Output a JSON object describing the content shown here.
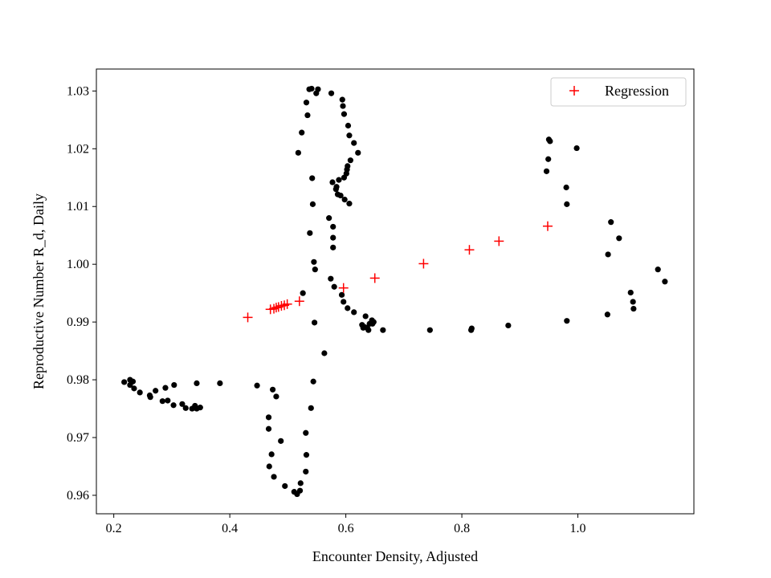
{
  "chart_data": {
    "type": "scatter",
    "title": "",
    "xlabel": "Encounter Density, Adjusted",
    "ylabel": "Reproductive Number R_d, Daily",
    "xlim": [
      0.17,
      1.2
    ],
    "ylim": [
      0.9568,
      1.0338
    ],
    "xticks": [
      0.2,
      0.4,
      0.6,
      0.8,
      1.0
    ],
    "xtick_labels": [
      "0.2",
      "0.4",
      "0.6",
      "0.8",
      "1.0"
    ],
    "yticks": [
      0.96,
      0.97,
      0.98,
      0.99,
      1.0,
      1.01,
      1.02,
      1.03
    ],
    "ytick_labels": [
      "0.96",
      "0.97",
      "0.98",
      "0.99",
      "1.00",
      "1.01",
      "1.02",
      "1.03"
    ],
    "grid": false,
    "legend_position": "top-right",
    "series": [
      {
        "marker": "dot",
        "color": "#000000",
        "points": [
          [
            0.218,
            0.9796
          ],
          [
            0.228,
            0.98
          ],
          [
            0.233,
            0.9797
          ],
          [
            0.228,
            0.9791
          ],
          [
            0.235,
            0.9785
          ],
          [
            0.245,
            0.9778
          ],
          [
            0.262,
            0.9773
          ],
          [
            0.263,
            0.977
          ],
          [
            0.272,
            0.9781
          ],
          [
            0.284,
            0.9763
          ],
          [
            0.289,
            0.9786
          ],
          [
            0.293,
            0.9764
          ],
          [
            0.303,
            0.9756
          ],
          [
            0.304,
            0.9791
          ],
          [
            0.318,
            0.9758
          ],
          [
            0.324,
            0.9751
          ],
          [
            0.335,
            0.975
          ],
          [
            0.34,
            0.9755
          ],
          [
            0.343,
            0.975
          ],
          [
            0.343,
            0.9794
          ],
          [
            0.349,
            0.9752
          ],
          [
            0.383,
            0.9794
          ],
          [
            0.447,
            0.979
          ],
          [
            0.467,
            0.9735
          ],
          [
            0.467,
            0.9715
          ],
          [
            0.468,
            0.965
          ],
          [
            0.472,
            0.9671
          ],
          [
            0.474,
            0.9783
          ],
          [
            0.476,
            0.9632
          ],
          [
            0.48,
            0.9771
          ],
          [
            0.488,
            0.9694
          ],
          [
            0.495,
            0.9616
          ],
          [
            0.511,
            0.9606
          ],
          [
            0.516,
            0.9602
          ],
          [
            0.521,
            0.9608
          ],
          [
            0.522,
            0.9621
          ],
          [
            0.526,
            0.995
          ],
          [
            0.531,
            0.9641
          ],
          [
            0.531,
            0.9708
          ],
          [
            0.532,
            0.967
          ],
          [
            0.532,
            1.028
          ],
          [
            0.534,
            1.0258
          ],
          [
            0.537,
            1.0303
          ],
          [
            0.538,
            1.0054
          ],
          [
            0.54,
            0.9751
          ],
          [
            0.541,
            1.0304
          ],
          [
            0.542,
            1.0149
          ],
          [
            0.543,
            1.0104
          ],
          [
            0.544,
            0.9797
          ],
          [
            0.545,
            1.0004
          ],
          [
            0.546,
            0.9899
          ],
          [
            0.547,
            0.9991
          ],
          [
            0.549,
            1.0296
          ],
          [
            0.552,
            1.0303
          ],
          [
            0.518,
            1.0193
          ],
          [
            0.524,
            1.0228
          ],
          [
            0.563,
            0.9846
          ],
          [
            0.571,
            1.008
          ],
          [
            0.574,
            0.9975
          ],
          [
            0.577,
            1.0142
          ],
          [
            0.578,
            1.0065
          ],
          [
            0.578,
            1.0046
          ],
          [
            0.578,
            1.0029
          ],
          [
            0.58,
            0.9961
          ],
          [
            0.583,
            1.013
          ],
          [
            0.584,
            1.0134
          ],
          [
            0.586,
            1.0121
          ],
          [
            0.588,
            1.0146
          ],
          [
            0.591,
            1.0119
          ],
          [
            0.593,
            0.9947
          ],
          [
            0.594,
            1.0285
          ],
          [
            0.595,
            1.0274
          ],
          [
            0.596,
            0.9935
          ],
          [
            0.597,
            1.026
          ],
          [
            0.597,
            1.015
          ],
          [
            0.598,
            1.0112
          ],
          [
            0.601,
            1.0157
          ],
          [
            0.602,
            1.0164
          ],
          [
            0.603,
            0.9924
          ],
          [
            0.603,
            1.017
          ],
          [
            0.604,
            1.024
          ],
          [
            0.606,
            1.0223
          ],
          [
            0.606,
            1.0105
          ],
          [
            0.608,
            1.018
          ],
          [
            0.614,
            0.9917
          ],
          [
            0.614,
            1.021
          ],
          [
            0.621,
            1.0193
          ],
          [
            0.575,
            1.0296
          ],
          [
            0.628,
            0.9895
          ],
          [
            0.63,
            0.989
          ],
          [
            0.633,
            0.9891
          ],
          [
            0.634,
            0.991
          ],
          [
            0.637,
            0.989
          ],
          [
            0.639,
            0.9886
          ],
          [
            0.641,
            0.9897
          ],
          [
            0.645,
            0.9903
          ],
          [
            0.646,
            0.9897
          ],
          [
            0.648,
            0.99
          ],
          [
            0.664,
            0.9886
          ],
          [
            0.745,
            0.9886
          ],
          [
            0.816,
            0.9886
          ],
          [
            0.817,
            0.9889
          ],
          [
            0.88,
            0.9894
          ],
          [
            0.946,
            1.0161
          ],
          [
            0.949,
            1.0182
          ],
          [
            0.95,
            1.0216
          ],
          [
            0.952,
            1.0213
          ],
          [
            0.98,
            1.0133
          ],
          [
            0.981,
            1.0104
          ],
          [
            0.981,
            0.9902
          ],
          [
            0.998,
            1.0201
          ],
          [
            1.052,
            1.0017
          ],
          [
            1.051,
            0.9913
          ],
          [
            1.057,
            1.0073
          ],
          [
            1.071,
            1.0045
          ],
          [
            1.091,
            0.9951
          ],
          [
            1.095,
            0.9935
          ],
          [
            1.096,
            0.9923
          ],
          [
            1.138,
            0.9991
          ],
          [
            1.15,
            0.997
          ]
        ]
      },
      {
        "name": "Regression",
        "marker": "plus",
        "color": "#ff0000",
        "points": [
          [
            0.431,
            0.9908
          ],
          [
            0.47,
            0.9922
          ],
          [
            0.476,
            0.9923
          ],
          [
            0.48,
            0.9925
          ],
          [
            0.484,
            0.9926
          ],
          [
            0.489,
            0.9928
          ],
          [
            0.494,
            0.9929
          ],
          [
            0.499,
            0.9931
          ],
          [
            0.52,
            0.9936
          ],
          [
            0.596,
            0.9959
          ],
          [
            0.65,
            0.9976
          ],
          [
            0.734,
            1.0001
          ],
          [
            0.813,
            1.0025
          ],
          [
            0.864,
            1.004
          ],
          [
            0.948,
            1.0066
          ]
        ]
      }
    ]
  }
}
